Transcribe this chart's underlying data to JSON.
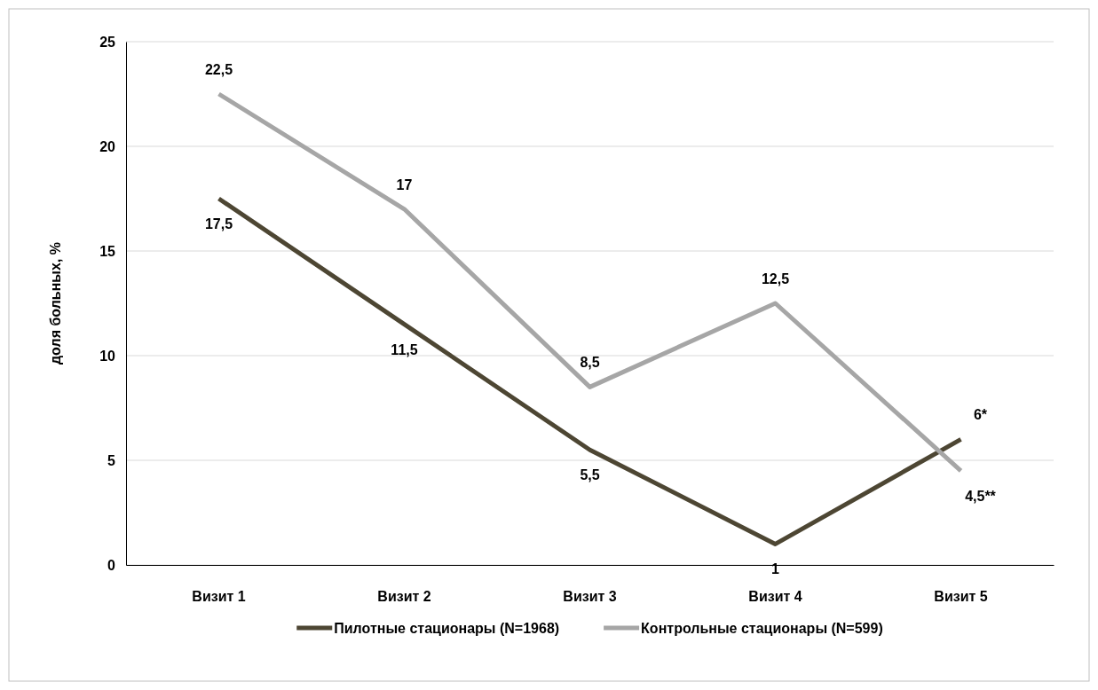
{
  "chart_data": {
    "type": "line",
    "ylabel": "доля больных, %",
    "categories": [
      "Визит 1",
      "Визит 2",
      "Визит 3",
      "Визит 4",
      "Визит 5"
    ],
    "series": [
      {
        "name": "Пилотные стационары (N=1968)",
        "color": "#4d4633",
        "values": [
          17.5,
          11.5,
          5.5,
          1,
          6
        ],
        "value_labels": [
          "17,5",
          "11,5",
          "5,5",
          "1",
          "6*"
        ]
      },
      {
        "name": "Контрольные стационары (N=599)",
        "color": "#a6a6a6",
        "values": [
          22.5,
          17,
          8.5,
          12.5,
          4.5
        ],
        "value_labels": [
          "22,5",
          "17",
          "8,5",
          "12,5",
          "4,5**"
        ]
      }
    ],
    "ylim": [
      0,
      25
    ],
    "yticks": [
      0,
      5,
      10,
      15,
      20,
      25
    ],
    "grid": "y",
    "legend": "bottom",
    "marker": "none",
    "line_style": "solid"
  }
}
